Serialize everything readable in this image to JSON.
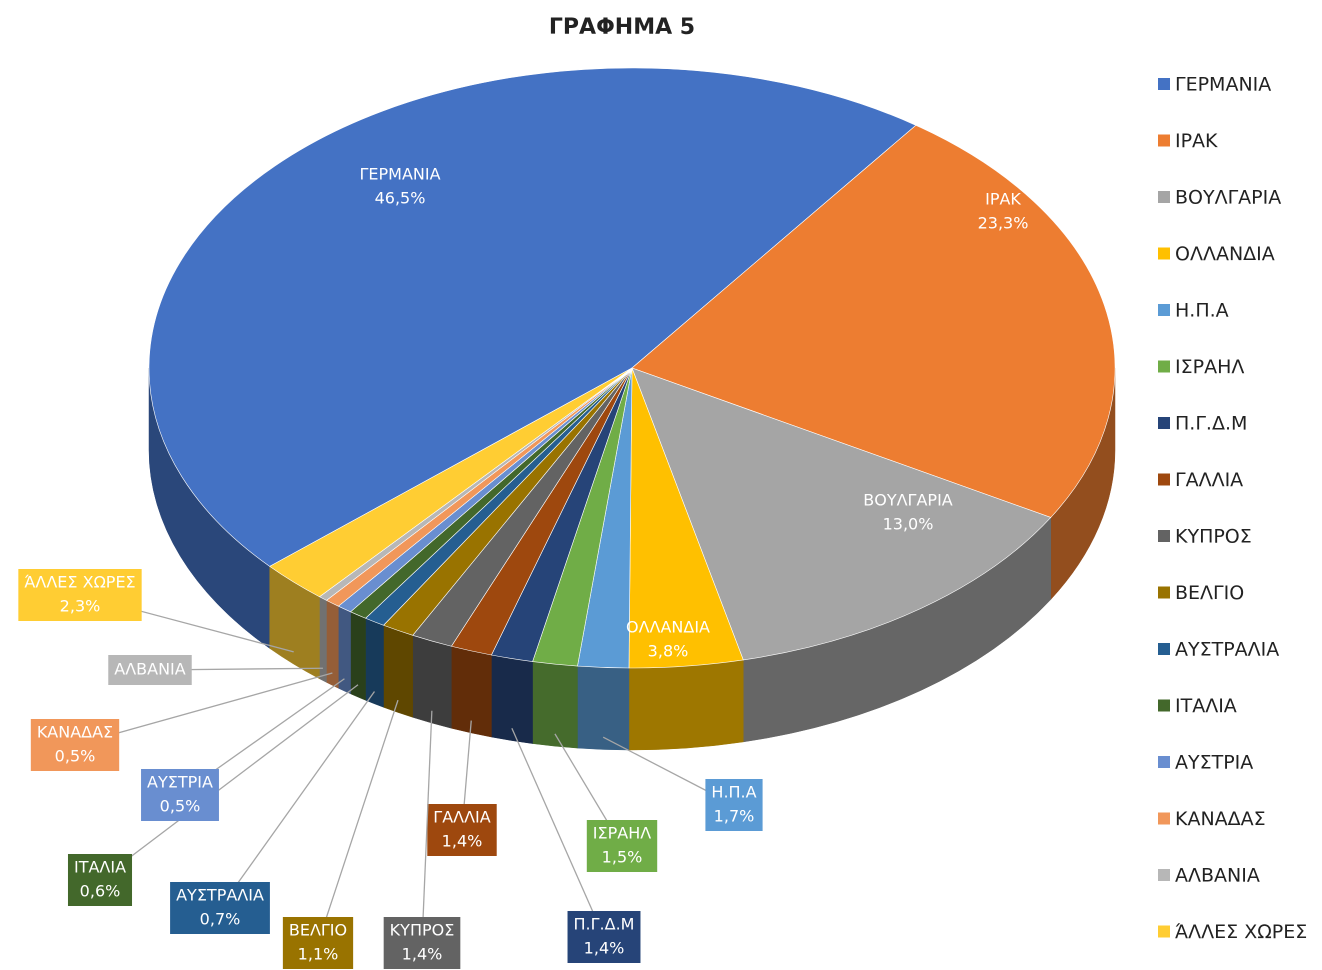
{
  "chart_data": {
    "type": "pie",
    "title": "ΓΡΑΦΗΜΑ 5",
    "categories": [
      "ΓΕΡΜΑΝΙΑ",
      "ΙΡΑΚ",
      "ΒΟΥΛΓΑΡΙΑ",
      "ΟΛΛΑΝΔΙΑ",
      "Η.Π.Α",
      "ΙΣΡΑΗΛ",
      "Π.Γ.Δ.Μ",
      "ΓΑΛΛΙΑ",
      "ΚΥΠΡΟΣ",
      "ΒΕΛΓΙΟ",
      "ΑΥΣΤΡΑΛΙΑ",
      "ΙΤΑΛΙΑ",
      "ΑΥΣΤΡΙΑ",
      "ΚΑΝΑΔΑΣ",
      "ΑΛΒΑΝΙΑ",
      "ΆΛΛΕΣ ΧΩΡΕΣ"
    ],
    "values": [
      46.5,
      23.3,
      13.0,
      3.8,
      1.7,
      1.5,
      1.4,
      1.4,
      1.4,
      1.1,
      0.7,
      0.6,
      0.5,
      0.5,
      0.3,
      2.3
    ],
    "value_labels": [
      "46,5%",
      "23,3%",
      "13,0%",
      "3,8%",
      "1,7%",
      "1,5%",
      "1,4%",
      "1,4%",
      "1,4%",
      "1,1%",
      "0,7%",
      "0,6%",
      "0,5%",
      "0,5%",
      null,
      "2,3%"
    ],
    "colors": [
      "#4472c4",
      "#ed7d31",
      "#a5a5a5",
      "#ffc000",
      "#5b9bd5",
      "#70ad47",
      "#264478",
      "#9e480e",
      "#636363",
      "#997300",
      "#255e91",
      "#43682b",
      "#698ed0",
      "#f1975a",
      "#b7b7b7",
      "#ffcd33"
    ],
    "legend": "right"
  }
}
